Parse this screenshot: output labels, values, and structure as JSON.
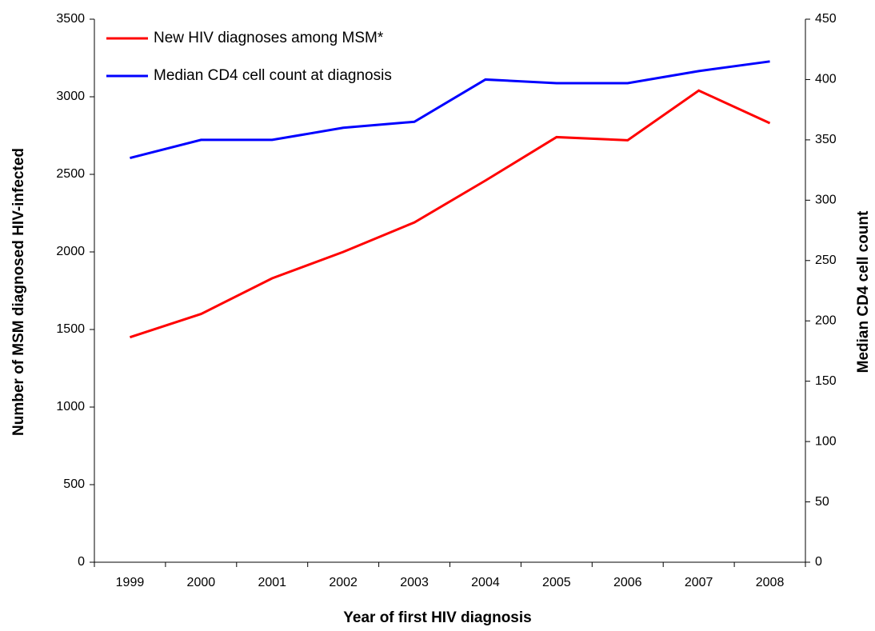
{
  "chart_data": {
    "type": "line",
    "x_label": "Year of first HIV diagnosis",
    "y_label": "Number of MSM diagnosed HIV-infected",
    "y2_label": "Median CD4 cell count",
    "categories": [
      "1999",
      "2000",
      "2001",
      "2002",
      "2003",
      "2004",
      "2005",
      "2006",
      "2007",
      "2008"
    ],
    "series": [
      {
        "name": "New HIV diagnoses among MSM*",
        "color": "#ff0000",
        "values": [
          1450,
          1600,
          1830,
          2000,
          2190,
          2460,
          2740,
          2720,
          3040,
          2830
        ]
      },
      {
        "name": "Median CD4 cell count at diagnosis",
        "color": "#0000ff",
        "axis": "y2",
        "values": [
          335,
          350,
          350,
          360,
          365,
          400,
          397,
          397,
          407,
          415
        ]
      }
    ],
    "ylim": [
      0,
      3500
    ],
    "yticks": [
      0,
      500,
      1000,
      1500,
      2000,
      2500,
      3000,
      3500
    ],
    "y2lim": [
      0,
      450
    ],
    "y2ticks": [
      0,
      50,
      100,
      150,
      200,
      250,
      300,
      350,
      400,
      450
    ],
    "legend": "upper left",
    "grid": false
  }
}
